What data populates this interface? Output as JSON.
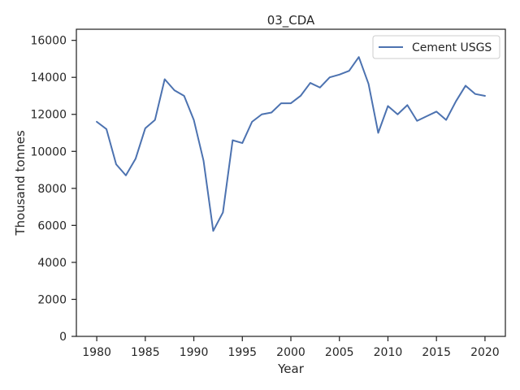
{
  "chart_data": {
    "type": "line",
    "title": "03_CDA",
    "xlabel": "Year",
    "ylabel": "Thousand tonnes",
    "xlim": [
      1977.9,
      2022.1
    ],
    "ylim": [
      0,
      16600
    ],
    "xticks": [
      1980,
      1985,
      1990,
      1995,
      2000,
      2005,
      2010,
      2015,
      2020
    ],
    "yticks": [
      0,
      2000,
      4000,
      6000,
      8000,
      10000,
      12000,
      14000,
      16000
    ],
    "grid": false,
    "legend_position": "top-right",
    "series": [
      {
        "name": "Cement USGS",
        "color": "#4c72b0",
        "x": [
          1980,
          1981,
          1982,
          1983,
          1984,
          1985,
          1986,
          1987,
          1988,
          1989,
          1990,
          1991,
          1992,
          1993,
          1994,
          1995,
          1996,
          1997,
          1998,
          1999,
          2000,
          2001,
          2002,
          2003,
          2004,
          2005,
          2006,
          2007,
          2008,
          2009,
          2010,
          2011,
          2012,
          2013,
          2014,
          2015,
          2016,
          2017,
          2018,
          2019,
          2020
        ],
        "values": [
          11600,
          11200,
          9300,
          8700,
          9600,
          11250,
          11700,
          13900,
          13300,
          13000,
          11700,
          9500,
          5700,
          6700,
          10600,
          10450,
          11600,
          12000,
          12100,
          12600,
          12600,
          13000,
          13700,
          13450,
          14000,
          14150,
          14350,
          15100,
          13650,
          11000,
          12450,
          12000,
          12500,
          11650,
          11900,
          12150,
          11700,
          12700,
          13550,
          13100,
          13000
        ]
      }
    ]
  }
}
